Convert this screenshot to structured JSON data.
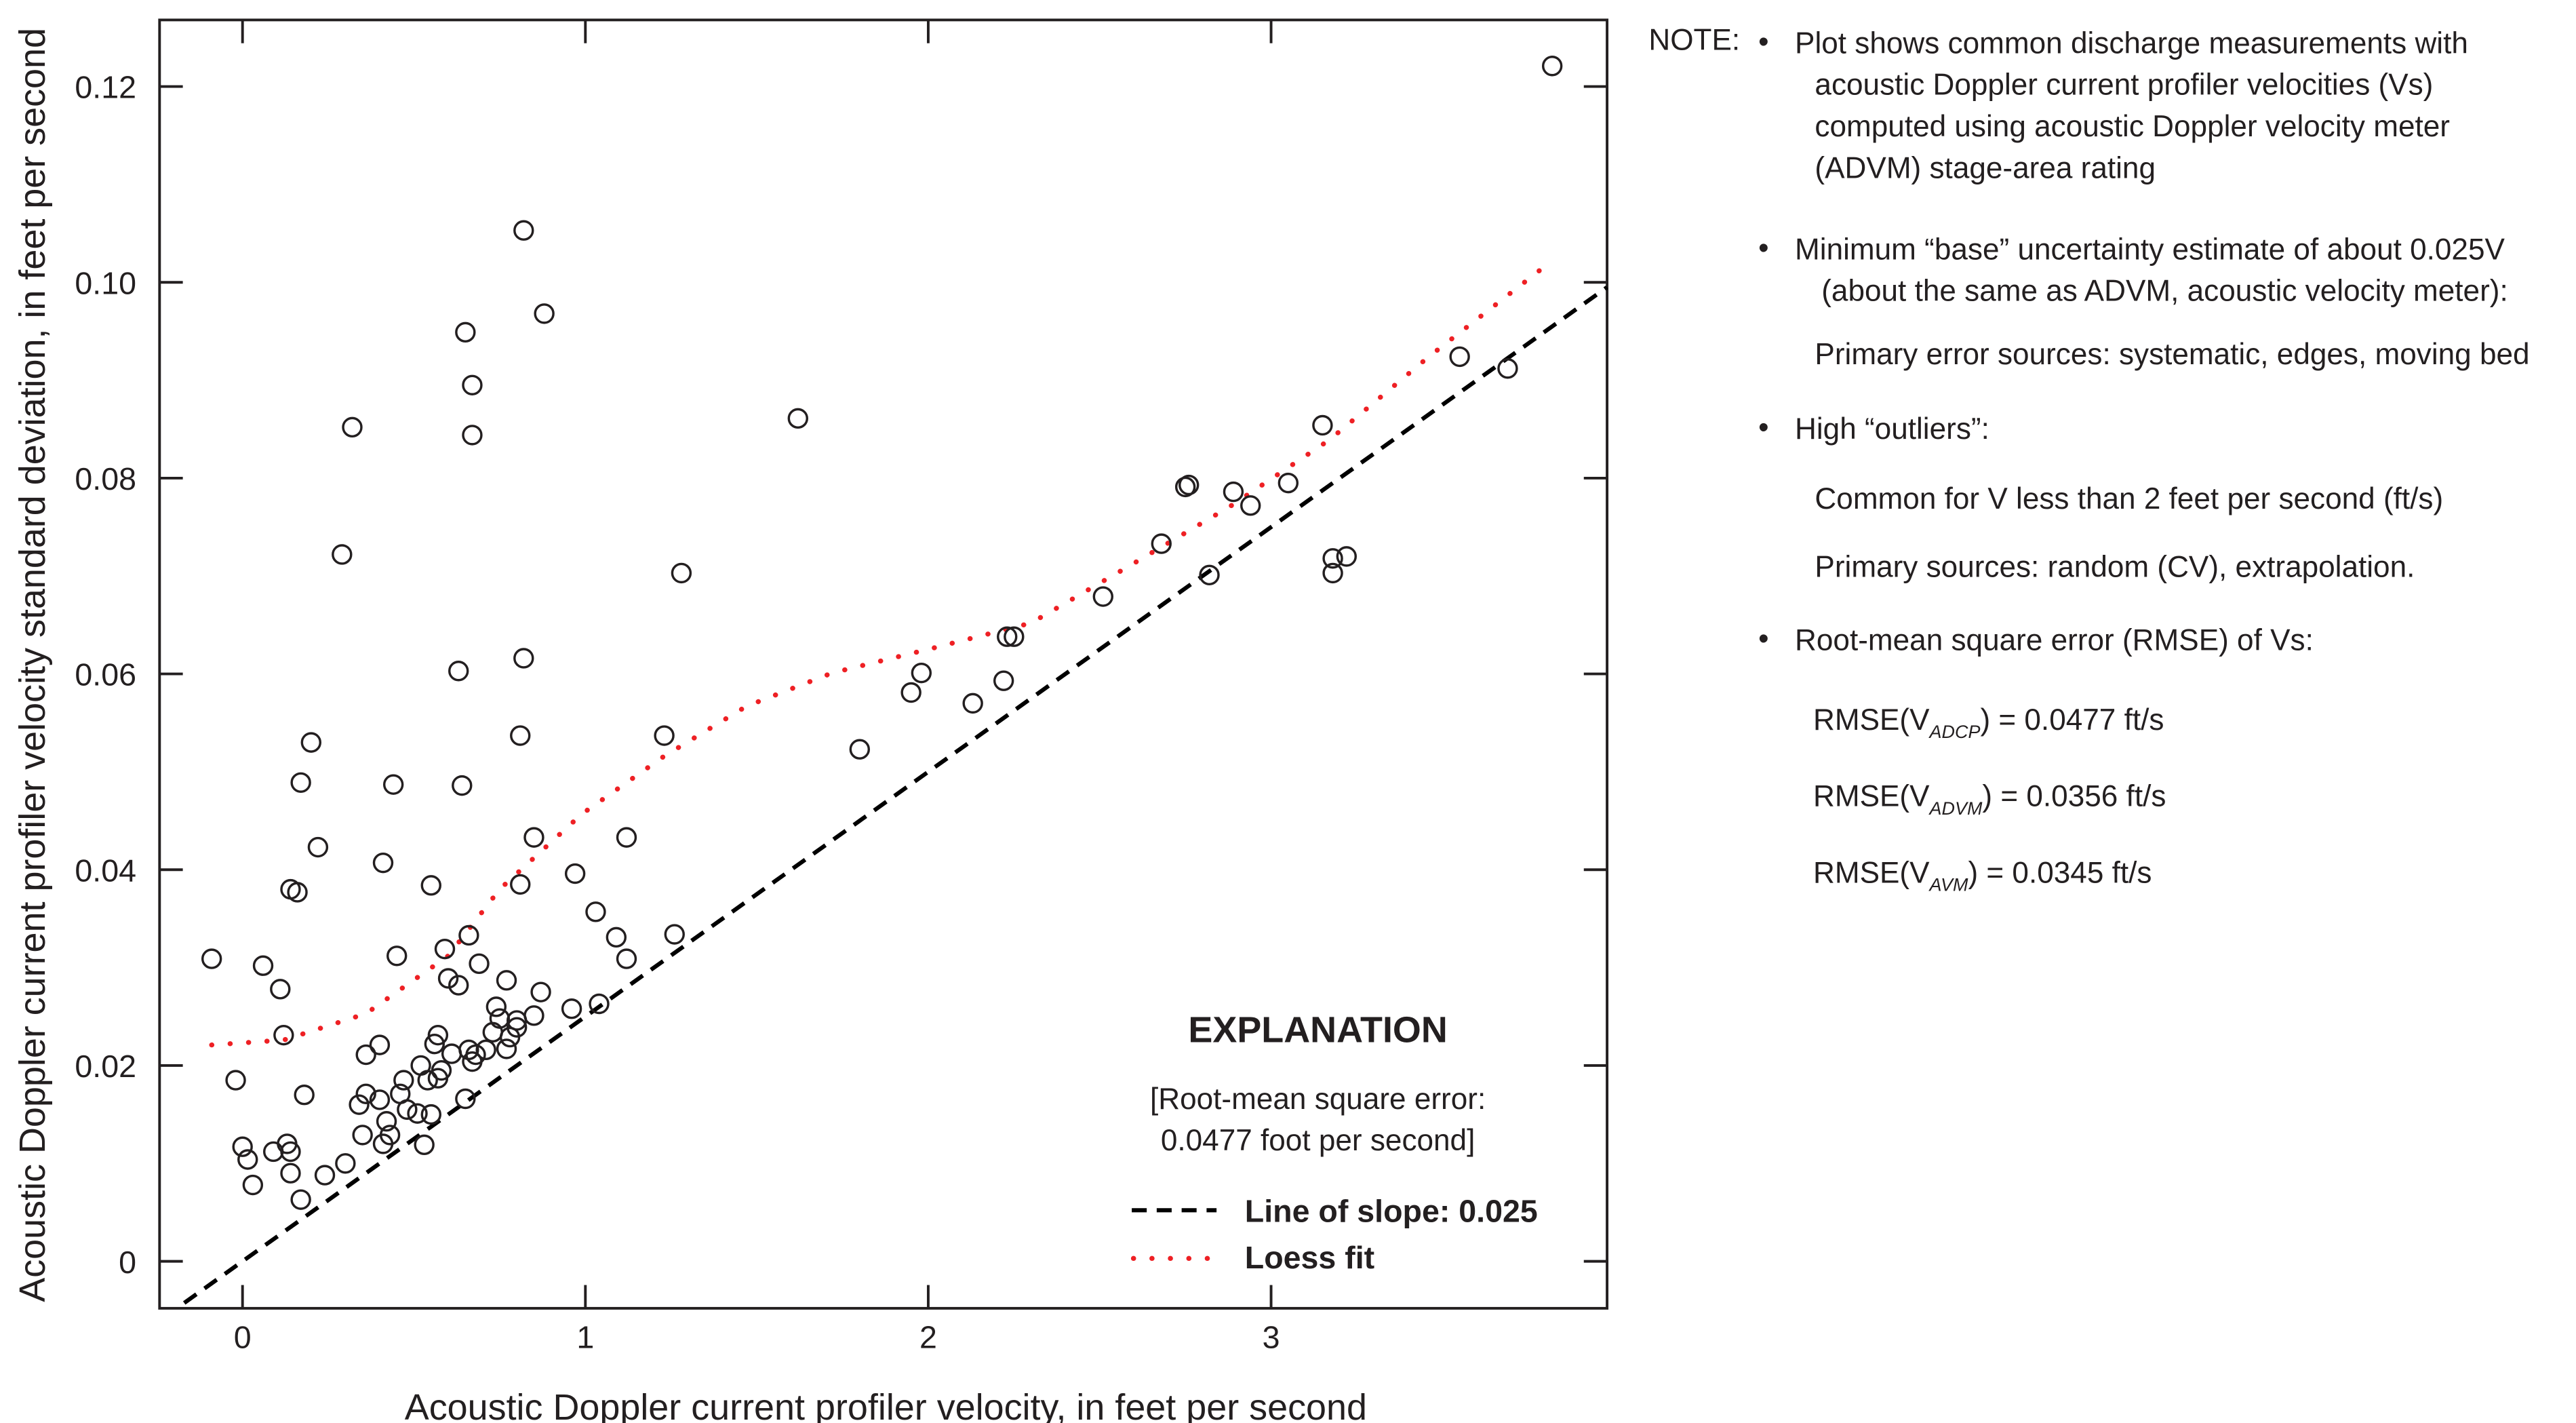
{
  "chart_data": {
    "type": "scatter",
    "xlabel": "Acoustic Doppler current profiler velocity, in feet per second",
    "ylabel": "Acoustic Doppler current profiler velocity standard deviation, in feet per second",
    "xlim": [
      -0.242,
      3.98
    ],
    "ylim": [
      -0.0048,
      0.1268
    ],
    "x_ticks": [
      0,
      1,
      2,
      3
    ],
    "x_tick_labels": [
      "0",
      "1",
      "2",
      "3"
    ],
    "y_ticks": [
      0,
      0.02,
      0.04,
      0.06,
      0.08,
      0.1,
      0.12
    ],
    "y_tick_labels": [
      "0",
      "0.02",
      "0.04",
      "0.06",
      "0.08",
      "0.10",
      "0.12"
    ],
    "grid": false,
    "points": [
      [
        -0.09,
        0.0309
      ],
      [
        -0.02,
        0.0185
      ],
      [
        0.0,
        0.0117
      ],
      [
        0.015,
        0.0104
      ],
      [
        0.03,
        0.0078
      ],
      [
        0.06,
        0.0302
      ],
      [
        0.09,
        0.0112
      ],
      [
        0.11,
        0.0278
      ],
      [
        0.12,
        0.0231
      ],
      [
        0.13,
        0.012
      ],
      [
        0.14,
        0.0112
      ],
      [
        0.14,
        0.009
      ],
      [
        0.14,
        0.038
      ],
      [
        0.16,
        0.0377
      ],
      [
        0.17,
        0.0489
      ],
      [
        0.17,
        0.0063
      ],
      [
        0.18,
        0.017
      ],
      [
        0.2,
        0.053
      ],
      [
        0.22,
        0.0423
      ],
      [
        0.24,
        0.0088
      ],
      [
        0.29,
        0.0722
      ],
      [
        0.3,
        0.01
      ],
      [
        0.32,
        0.0852
      ],
      [
        0.34,
        0.016
      ],
      [
        0.35,
        0.0129
      ],
      [
        0.36,
        0.0211
      ],
      [
        0.36,
        0.0171
      ],
      [
        0.4,
        0.0165
      ],
      [
        0.4,
        0.0221
      ],
      [
        0.41,
        0.0407
      ],
      [
        0.41,
        0.012
      ],
      [
        0.42,
        0.0143
      ],
      [
        0.43,
        0.0129
      ],
      [
        0.44,
        0.0487
      ],
      [
        0.45,
        0.0312
      ],
      [
        0.46,
        0.0171
      ],
      [
        0.47,
        0.0185
      ],
      [
        0.48,
        0.0155
      ],
      [
        0.51,
        0.0151
      ],
      [
        0.52,
        0.02
      ],
      [
        0.53,
        0.0119
      ],
      [
        0.54,
        0.0185
      ],
      [
        0.55,
        0.0384
      ],
      [
        0.55,
        0.015
      ],
      [
        0.56,
        0.0222
      ],
      [
        0.57,
        0.0231
      ],
      [
        0.57,
        0.0187
      ],
      [
        0.58,
        0.0195
      ],
      [
        0.59,
        0.0319
      ],
      [
        0.6,
        0.0289
      ],
      [
        0.61,
        0.0212
      ],
      [
        0.63,
        0.0282
      ],
      [
        0.63,
        0.0603
      ],
      [
        0.64,
        0.0486
      ],
      [
        0.65,
        0.0949
      ],
      [
        0.65,
        0.0166
      ],
      [
        0.66,
        0.0216
      ],
      [
        0.66,
        0.0333
      ],
      [
        0.67,
        0.0895
      ],
      [
        0.67,
        0.0204
      ],
      [
        0.67,
        0.0844
      ],
      [
        0.68,
        0.0211
      ],
      [
        0.69,
        0.0304
      ],
      [
        0.71,
        0.0216
      ],
      [
        0.73,
        0.0234
      ],
      [
        0.74,
        0.026
      ],
      [
        0.75,
        0.0248
      ],
      [
        0.77,
        0.0287
      ],
      [
        0.77,
        0.0217
      ],
      [
        0.78,
        0.0229
      ],
      [
        0.8,
        0.0246
      ],
      [
        0.8,
        0.0239
      ],
      [
        0.81,
        0.0537
      ],
      [
        0.81,
        0.0385
      ],
      [
        0.82,
        0.0616
      ],
      [
        0.82,
        0.1053
      ],
      [
        0.85,
        0.0433
      ],
      [
        0.85,
        0.0251
      ],
      [
        0.87,
        0.0275
      ],
      [
        0.88,
        0.0968
      ],
      [
        0.96,
        0.0258
      ],
      [
        0.97,
        0.0396
      ],
      [
        1.03,
        0.0357
      ],
      [
        1.04,
        0.0263
      ],
      [
        1.09,
        0.0331
      ],
      [
        1.12,
        0.0433
      ],
      [
        1.12,
        0.0309
      ],
      [
        1.23,
        0.0537
      ],
      [
        1.26,
        0.0334
      ],
      [
        1.28,
        0.0703
      ],
      [
        1.62,
        0.0861
      ],
      [
        1.8,
        0.0523
      ],
      [
        1.95,
        0.0581
      ],
      [
        1.98,
        0.0601
      ],
      [
        2.13,
        0.057
      ],
      [
        2.22,
        0.0593
      ],
      [
        2.23,
        0.0638
      ],
      [
        2.25,
        0.0638
      ],
      [
        2.51,
        0.0679
      ],
      [
        2.68,
        0.0733
      ],
      [
        2.75,
        0.0791
      ],
      [
        2.76,
        0.0793
      ],
      [
        2.82,
        0.0701
      ],
      [
        2.89,
        0.0786
      ],
      [
        2.94,
        0.0772
      ],
      [
        3.05,
        0.0795
      ],
      [
        3.15,
        0.0854
      ],
      [
        3.18,
        0.0718
      ],
      [
        3.18,
        0.0703
      ],
      [
        3.22,
        0.072
      ],
      [
        3.55,
        0.0924
      ],
      [
        3.69,
        0.0912
      ],
      [
        3.82,
        0.1221
      ]
    ],
    "slope_line": {
      "name": "Line of slope: 0.025",
      "slope": 0.025,
      "x_range": [
        -0.17,
        3.98
      ],
      "color": "#000000"
    },
    "loess_fit": {
      "name": "Loess fit",
      "color": "#ee2024",
      "points": [
        [
          -0.09,
          0.0221
        ],
        [
          0.12,
          0.0226
        ],
        [
          0.36,
          0.0253
        ],
        [
          0.6,
          0.0312
        ],
        [
          0.75,
          0.038
        ],
        [
          0.99,
          0.0457
        ],
        [
          1.23,
          0.0516
        ],
        [
          1.47,
          0.0567
        ],
        [
          1.72,
          0.0601
        ],
        [
          2.01,
          0.0626
        ],
        [
          2.3,
          0.0652
        ],
        [
          2.59,
          0.0711
        ],
        [
          2.88,
          0.0771
        ],
        [
          3.17,
          0.0839
        ],
        [
          3.46,
          0.0924
        ],
        [
          3.79,
          0.1014
        ]
      ]
    },
    "legend": {
      "title": "EXPLANATION",
      "note_line1": "[Root-mean square error:",
      "note_line2": "0.0477 foot per second]",
      "placement": "bottom-right"
    }
  },
  "notes": {
    "label": "NOTE:",
    "b1": [
      "Plot shows common discharge measurements with",
      "acoustic Doppler current profiler velocities (Vs)",
      "computed using acoustic Doppler velocity meter",
      "(ADVM) stage-area rating"
    ],
    "b2": [
      "Minimum “base” uncertainty estimate of about 0.025V",
      "(about the same as ADVM, acoustic velocity meter):"
    ],
    "b2_sub": "Primary error sources: systematic, edges, moving bed",
    "b3": "High “outliers”:",
    "b3_sub1": "Common for V less than 2 feet per second (ft/s)",
    "b3_sub2": "Primary sources: random (CV), extrapolation.",
    "b4": "Root-mean square error (RMSE) of Vs:",
    "rmse": [
      {
        "pre": "RMSE(V",
        "sub": "ADCP",
        "post": ") = 0.0477 ft/s"
      },
      {
        "pre": "RMSE(V",
        "sub": "ADVM",
        "post": ") = 0.0356 ft/s"
      },
      {
        "pre": "RMSE(V",
        "sub": "AVM",
        "post": ") = 0.0345 ft/s"
      }
    ]
  }
}
